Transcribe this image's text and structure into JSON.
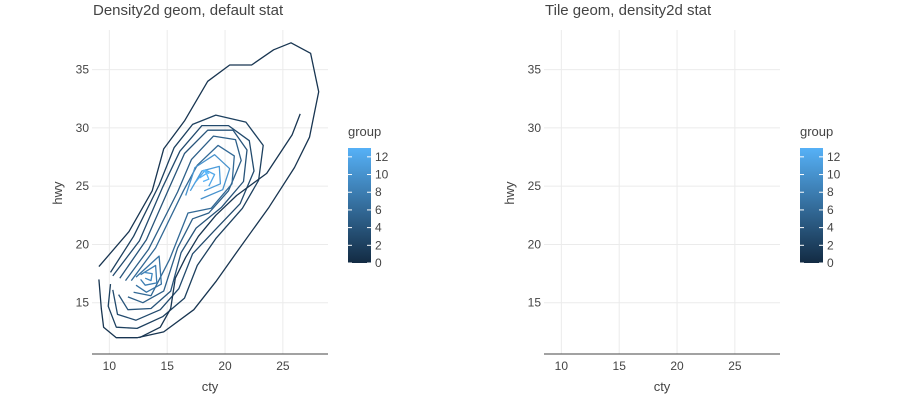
{
  "chart_data": [
    {
      "type": "contour",
      "title": "Density2d geom, default stat",
      "xlabel": "cty",
      "ylabel": "hwy",
      "xlim": [
        8.5,
        28.9
      ],
      "ylim": [
        10.6,
        38.4
      ],
      "xticks": [
        10,
        15,
        20,
        25
      ],
      "yticks": [
        15,
        20,
        25,
        30,
        35
      ],
      "grid": true,
      "legend": {
        "title": "group",
        "placement": "right",
        "ticks": [
          0,
          2,
          4,
          6,
          8,
          10,
          12
        ],
        "range": [
          0,
          13
        ],
        "color_low": "#132b43",
        "color_high": "#56b1f7"
      },
      "contours": [
        {
          "group": 1,
          "points": [
            [
              9.1,
              18.1
            ],
            [
              11.7,
              21.1
            ],
            [
              13.7,
              24.6
            ],
            [
              14.7,
              28.2
            ],
            [
              16.5,
              30.6
            ],
            [
              18.5,
              34
            ],
            [
              20.4,
              35.4
            ],
            [
              22.3,
              35.4
            ],
            [
              24.2,
              36.7
            ],
            [
              25.7,
              37.3
            ],
            [
              27.4,
              36.4
            ],
            [
              28.1,
              33.1
            ],
            [
              27.3,
              29.2
            ],
            [
              26,
              26.6
            ],
            [
              23.8,
              23.2
            ],
            [
              21.2,
              19.6
            ],
            [
              19.2,
              16.8
            ],
            [
              17.3,
              14.4
            ],
            [
              14.7,
              12.5
            ],
            [
              12.4,
              12
            ],
            [
              10.6,
              12
            ],
            [
              9.5,
              12.9
            ],
            [
              9.3,
              14.5
            ],
            [
              9.1,
              17
            ]
          ]
        },
        {
          "group": 2,
          "points": [
            [
              10.1,
              17.6
            ],
            [
              12.1,
              20.7
            ],
            [
              14.3,
              25.1
            ],
            [
              15.6,
              28.3
            ],
            [
              17.2,
              30.3
            ],
            [
              19.2,
              31.1
            ],
            [
              21.8,
              30.5
            ],
            [
              23.3,
              28.5
            ],
            [
              22.9,
              25.5
            ],
            [
              21.5,
              23.1
            ],
            [
              19.2,
              20.5
            ],
            [
              17.6,
              18.2
            ],
            [
              16.5,
              15.4
            ],
            [
              14.6,
              13.8
            ],
            [
              12.4,
              12.8
            ],
            [
              10.6,
              12.9
            ],
            [
              9.9,
              14.7
            ],
            [
              10.1,
              16.6
            ]
          ]
        },
        {
          "group": 3,
          "points": [
            [
              10.3,
              17.3
            ],
            [
              12.6,
              20.3
            ],
            [
              14.6,
              24.9
            ],
            [
              16.1,
              28
            ],
            [
              18,
              30.2
            ],
            [
              20.3,
              30.2
            ],
            [
              22.1,
              28.9
            ],
            [
              22.5,
              26.3
            ],
            [
              21.3,
              23.5
            ],
            [
              19,
              21.1
            ],
            [
              17.2,
              19.2
            ],
            [
              16,
              16.2
            ],
            [
              14.4,
              14.4
            ],
            [
              12.3,
              13.5
            ],
            [
              10.7,
              14
            ],
            [
              10.3,
              16.1
            ]
          ]
        },
        {
          "group": 4,
          "points": [
            [
              10.9,
              17.1
            ],
            [
              13.2,
              20.4
            ],
            [
              15.2,
              24.9
            ],
            [
              16.5,
              27.8
            ],
            [
              18.5,
              29.8
            ],
            [
              20.7,
              29.8
            ],
            [
              21.9,
              28.1
            ],
            [
              21.6,
              25.4
            ],
            [
              19.7,
              23.2
            ],
            [
              17.5,
              21.4
            ],
            [
              16.2,
              19.3
            ],
            [
              15.3,
              16
            ],
            [
              13.6,
              14.5
            ],
            [
              11.6,
              14.4
            ],
            [
              10.8,
              15.7
            ]
          ]
        },
        {
          "group": 5,
          "points": [
            [
              11.4,
              16.9
            ],
            [
              13.4,
              19.6
            ],
            [
              15.9,
              24.5
            ],
            [
              17.1,
              27.3
            ],
            [
              19,
              29.3
            ],
            [
              20.9,
              29
            ],
            [
              21.4,
              27.2
            ],
            [
              20.3,
              24.6
            ],
            [
              18.6,
              22.7
            ],
            [
              17.2,
              22.2
            ],
            [
              15.9,
              19.7
            ],
            [
              14.7,
              16
            ],
            [
              12.9,
              15
            ],
            [
              11.6,
              15.5
            ]
          ]
        },
        {
          "group": 6,
          "points": [
            [
              11.9,
              16.9
            ],
            [
              14,
              19.7
            ],
            [
              16.4,
              24.6
            ],
            [
              17.6,
              26.8
            ],
            [
              19.4,
              28.5
            ],
            [
              20.8,
              27.6
            ],
            [
              20.6,
              25.2
            ],
            [
              18.8,
              23.1
            ],
            [
              16.8,
              22.7
            ],
            [
              15.2,
              18.7
            ],
            [
              13.6,
              15.6
            ],
            [
              12.1,
              15.9
            ]
          ]
        },
        {
          "group": 7,
          "points": [
            [
              12.3,
              17.2
            ],
            [
              14.3,
              19
            ],
            [
              14.5,
              16.6
            ],
            [
              13.2,
              15.9
            ],
            [
              12.3,
              16.5
            ]
          ]
        },
        {
          "group": 8,
          "points": [
            [
              12.7,
              17.4
            ],
            [
              14,
              18.2
            ],
            [
              14.1,
              16.7
            ],
            [
              13.1,
              16.5
            ],
            [
              12.7,
              17
            ]
          ]
        },
        {
          "group": 9,
          "points": [
            [
              13,
              17.6
            ],
            [
              13.7,
              17.5
            ],
            [
              13.6,
              16.9
            ],
            [
              13.1,
              17.1
            ]
          ]
        },
        {
          "group": 10,
          "points": [
            [
              16.6,
              24.2
            ],
            [
              17.4,
              26.6
            ],
            [
              19.1,
              27.7
            ],
            [
              20.4,
              26.5
            ],
            [
              19.8,
              24.7
            ],
            [
              17.9,
              23.9
            ]
          ]
        },
        {
          "group": 11,
          "points": [
            [
              17,
              24.6
            ],
            [
              18,
              26.3
            ],
            [
              19.5,
              26.7
            ],
            [
              19.6,
              25.2
            ],
            [
              18.2,
              24.6
            ]
          ]
        },
        {
          "group": 12,
          "points": [
            [
              17.4,
              25.3
            ],
            [
              18.3,
              26.4
            ],
            [
              19.1,
              26
            ],
            [
              18.6,
              25
            ]
          ]
        },
        {
          "group": 13,
          "points": [
            [
              17.8,
              25.7
            ],
            [
              18.4,
              26.1
            ],
            [
              18.6,
              25.6
            ],
            [
              18.1,
              25.4
            ]
          ]
        },
        {
          "group": 14,
          "points": [
            [
              18.2,
              26.4
            ],
            [
              18.6,
              26.1
            ],
            [
              18.3,
              26.2
            ],
            [
              18.1,
              26.4
            ]
          ]
        },
        {
          "group": 1,
          "points": [
            [
              12.6,
              12
            ],
            [
              14.4,
              12.9
            ],
            [
              15.3,
              14.5
            ],
            [
              15.7,
              17.1
            ],
            [
              16.6,
              18.9
            ],
            [
              17.7,
              20.7
            ],
            [
              19.2,
              22.5
            ],
            [
              21,
              24.2
            ],
            [
              23.6,
              26.1
            ],
            [
              25.8,
              29.4
            ],
            [
              26.5,
              31.2
            ]
          ]
        }
      ]
    },
    {
      "type": "heatmap",
      "title": "Tile geom, density2d stat",
      "xlabel": "cty",
      "ylabel": "hwy",
      "xlim": [
        8.5,
        28.9
      ],
      "ylim": [
        10.6,
        38.4
      ],
      "xticks": [
        10,
        15,
        20,
        25
      ],
      "yticks": [
        15,
        20,
        25,
        30,
        35
      ],
      "grid": true,
      "legend": {
        "title": "group",
        "placement": "right",
        "ticks": [
          0,
          2,
          4,
          6,
          8,
          10,
          12
        ],
        "range": [
          0,
          13
        ],
        "color_low": "#132b43",
        "color_high": "#56b1f7"
      }
    }
  ]
}
